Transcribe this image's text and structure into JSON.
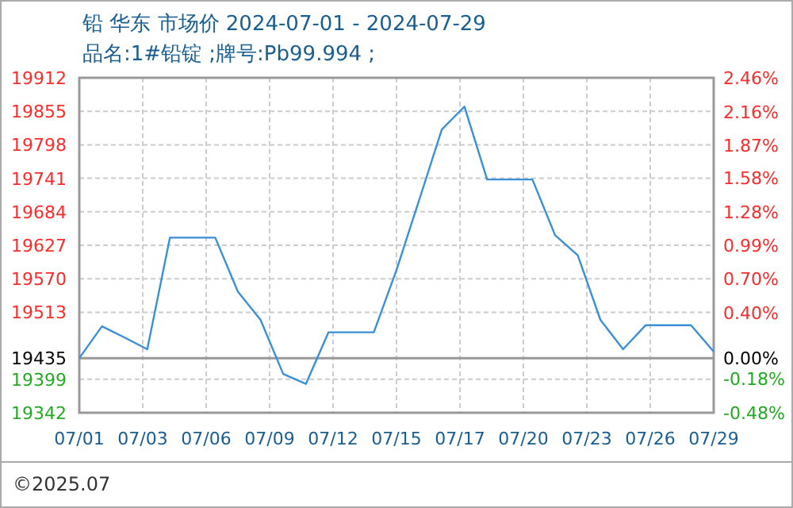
{
  "chart_data": {
    "type": "line",
    "title": "铅 华东 市场价 2024-07-01 - 2024-07-29",
    "subtitle": "品名:1#铅锭 ;牌号:Pb99.994 ;",
    "annotations": [
      "©2025.07"
    ],
    "x": [
      "2024-07-01",
      "2024-07-02",
      "2024-07-03",
      "2024-07-04",
      "2024-07-05",
      "2024-07-06",
      "2024-07-07",
      "2024-07-08",
      "2024-07-09",
      "2024-07-10",
      "2024-07-11",
      "2024-07-12",
      "2024-07-13",
      "2024-07-14",
      "2024-07-15",
      "2024-07-16",
      "2024-07-17",
      "2024-07-18",
      "2024-07-19",
      "2024-07-20",
      "2024-07-21",
      "2024-07-22",
      "2024-07-23",
      "2024-07-24",
      "2024-07-25",
      "2024-07-26",
      "2024-07-27",
      "2024-07-28",
      "2024-07-29"
    ],
    "series": [
      {
        "color": "#3a8fd6",
        "values": [
          19435,
          19489,
          19470,
          19450,
          19640,
          19640,
          19640,
          19548,
          19500,
          19408,
          19391,
          19479,
          19479,
          19479,
          19585,
          19704,
          19824,
          19863,
          19739,
          19739,
          19739,
          19644,
          19610,
          19500,
          19450,
          19491,
          19491,
          19491,
          19446
        ]
      }
    ],
    "xlim": [
      "2024-07-01",
      "2024-07-29"
    ],
    "xticks": [
      {
        "value": "2024-07-01",
        "label": "07/01"
      },
      {
        "value": "2024-07-03T19:12",
        "label": "07/03"
      },
      {
        "value": "2024-07-06T14:24",
        "label": "07/06"
      },
      {
        "value": "2024-07-09T09:36",
        "label": "07/09"
      },
      {
        "value": "2024-07-12T04:48",
        "label": "07/12"
      },
      {
        "value": "2024-07-15",
        "label": "07/15"
      },
      {
        "value": "2024-07-17T19:12",
        "label": "07/17"
      },
      {
        "value": "2024-07-20T14:24",
        "label": "07/20"
      },
      {
        "value": "2024-07-23T09:36",
        "label": "07/23"
      },
      {
        "value": "2024-07-26T04:48",
        "label": "07/26"
      },
      {
        "value": "2024-07-29",
        "label": "07/29"
      }
    ],
    "ylim": [
      19342,
      19912
    ],
    "yticks": [
      19912,
      19855,
      19798,
      19741,
      19684,
      19627,
      19570,
      19513,
      19435,
      19399,
      19342
    ],
    "y2lim": [
      -0.48,
      2.46
    ],
    "y2ticks": [
      {
        "value": 2.46,
        "label": "2.46%"
      },
      {
        "value": 2.16,
        "label": "2.16%"
      },
      {
        "value": 1.87,
        "label": "1.87%"
      },
      {
        "value": 1.58,
        "label": "1.58%"
      },
      {
        "value": 1.28,
        "label": "1.28%"
      },
      {
        "value": 0.99,
        "label": "0.99%"
      },
      {
        "value": 0.7,
        "label": "0.70%"
      },
      {
        "value": 0.4,
        "label": "0.40%"
      },
      {
        "value": 0,
        "label": "0.00%"
      },
      {
        "value": -0.18,
        "label": "-0.18%"
      },
      {
        "value": -0.48,
        "label": "-0.48%"
      }
    ],
    "ref_lines": [
      {
        "axis": "y",
        "value": 19435,
        "color": "#999999",
        "line_style": "solid"
      }
    ],
    "grid": true,
    "marker": "none",
    "line_style": "solid"
  }
}
